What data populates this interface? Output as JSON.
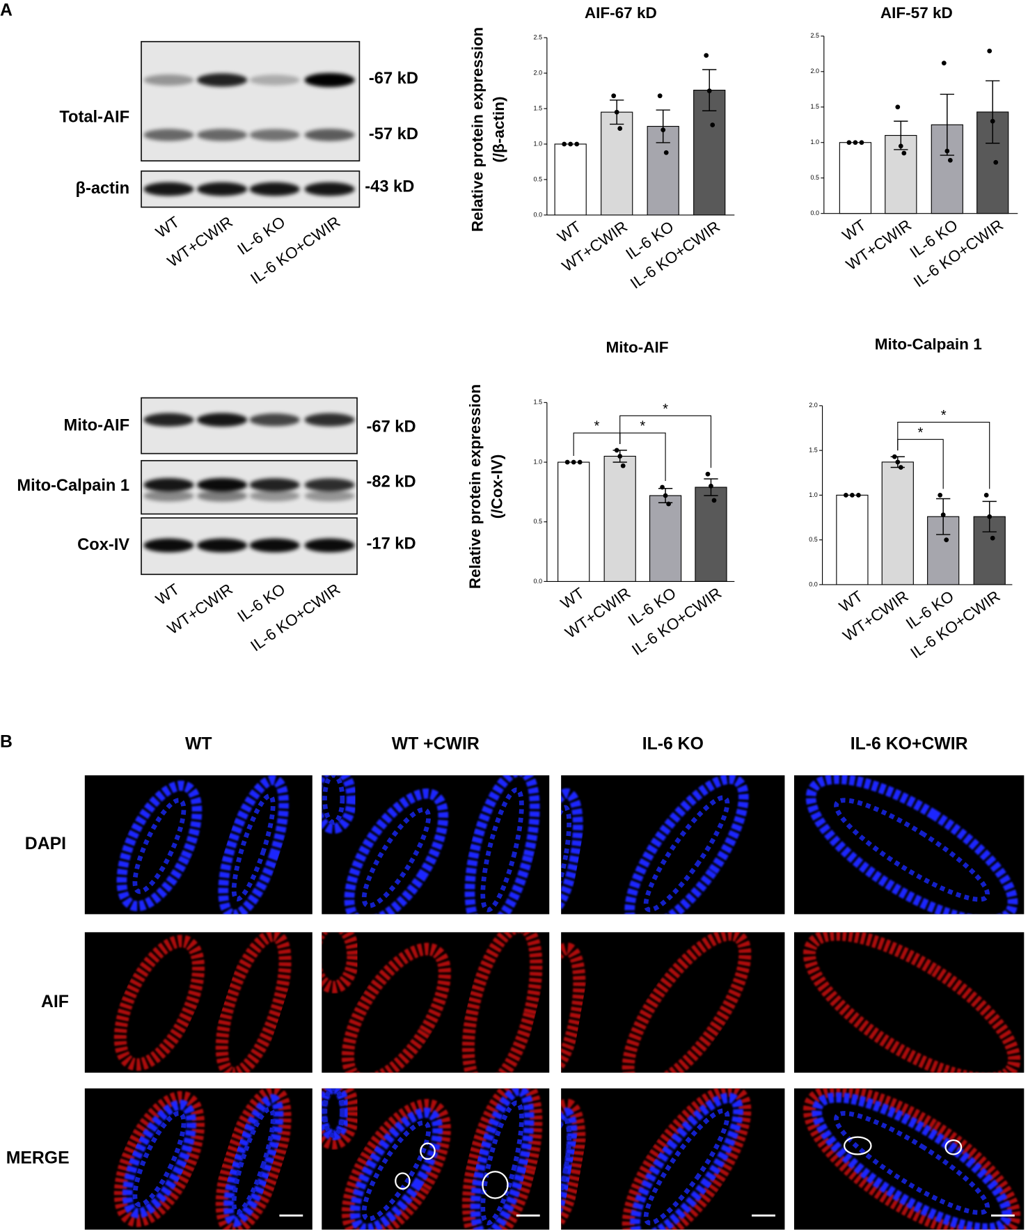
{
  "panel_a": {
    "label": "A",
    "blot_groups": [
      {
        "lanes": [
          "WT",
          "WT+CWIR",
          "IL-6 KO",
          "IL-6 KO+CWIR"
        ],
        "blots": [
          {
            "label": "Total-AIF",
            "markers": [
              "-67 kD",
              "-57 kD"
            ]
          },
          {
            "label": "β-actin",
            "markers": [
              "-43 kD"
            ]
          }
        ]
      },
      {
        "lanes": [
          "WT",
          "WT+CWIR",
          "IL-6 KO",
          "IL-6 KO+CWIR"
        ],
        "blots": [
          {
            "label": "Mito-AIF",
            "markers": [
              "-67 kD"
            ]
          },
          {
            "label": "Mito-Calpain 1",
            "markers": [
              "-82 kD"
            ]
          },
          {
            "label": "Cox-IV",
            "markers": [
              "-17 kD"
            ]
          }
        ]
      }
    ]
  },
  "chart_data": [
    {
      "type": "bar",
      "title": "AIF-67 kD",
      "ylabel": [
        "Relative protein expression",
        "(/β-actin)"
      ],
      "categories": [
        "WT",
        "WT+CWIR",
        "IL-6 KO",
        "IL-6 KO+CWIR"
      ],
      "values": [
        1.0,
        1.45,
        1.25,
        1.76
      ],
      "errors": [
        0,
        0.17,
        0.23,
        0.29
      ],
      "points": [
        [
          1,
          1,
          1
        ],
        [
          1.68,
          1.45,
          1.22
        ],
        [
          1.68,
          1.2,
          0.88
        ],
        [
          2.25,
          1.75,
          1.27
        ]
      ],
      "colors": [
        "#ffffff",
        "#d9d9d9",
        "#a6a6ad",
        "#595959"
      ],
      "ylim": [
        0,
        2.5
      ],
      "yticks": [
        {
          "value": 0,
          "label": "0.0"
        },
        {
          "value": 0.5,
          "label": "0.5"
        },
        {
          "value": 1,
          "label": "1.0"
        },
        {
          "value": 1.5,
          "label": "1.5"
        },
        {
          "value": 2,
          "label": "2.0"
        },
        {
          "value": 2.5,
          "label": "2.5"
        }
      ]
    },
    {
      "type": "bar",
      "title": "AIF-57 kD",
      "categories": [
        "WT",
        "WT+CWIR",
        "IL-6 KO",
        "IL-6 KO+CWIR"
      ],
      "values": [
        1.0,
        1.1,
        1.25,
        1.43
      ],
      "errors": [
        0,
        0.2,
        0.43,
        0.44
      ],
      "points": [
        [
          1,
          1,
          1
        ],
        [
          1.5,
          0.95,
          0.85
        ],
        [
          2.12,
          0.88,
          0.75
        ],
        [
          2.29,
          1.3,
          0.72
        ]
      ],
      "colors": [
        "#ffffff",
        "#d9d9d9",
        "#a6a6ad",
        "#595959"
      ],
      "ylim": [
        0,
        2.5
      ],
      "yticks": [
        {
          "value": 0,
          "label": "0.0"
        },
        {
          "value": 0.5,
          "label": "0.5"
        },
        {
          "value": 1,
          "label": "1.0"
        },
        {
          "value": 1.5,
          "label": "1.5"
        },
        {
          "value": 2,
          "label": "2.0"
        },
        {
          "value": 2.5,
          "label": "2.5"
        }
      ]
    },
    {
      "type": "bar",
      "title": "Mito-AIF",
      "ylabel": [
        "Relative protein expression",
        "(/Cox-IV)"
      ],
      "categories": [
        "WT",
        "WT+CWIR",
        "IL-6 KO",
        "IL-6 KO+CWIR"
      ],
      "values": [
        1.0,
        1.05,
        0.72,
        0.79
      ],
      "errors": [
        0,
        0.05,
        0.06,
        0.07
      ],
      "points": [
        [
          1,
          1,
          1
        ],
        [
          1.1,
          1.05,
          0.97
        ],
        [
          0.79,
          0.72,
          0.65
        ],
        [
          0.9,
          0.8,
          0.68
        ]
      ],
      "colors": [
        "#ffffff",
        "#d9d9d9",
        "#a6a6ad",
        "#595959"
      ],
      "ylim": [
        0,
        1.5
      ],
      "yticks": [
        {
          "value": 0,
          "label": "0.0"
        },
        {
          "value": 0.5,
          "label": "0.5"
        },
        {
          "value": 1,
          "label": "1.0"
        },
        {
          "value": 1.5,
          "label": "1.5"
        }
      ],
      "significance": [
        {
          "from": 0,
          "to": 1,
          "text": "*"
        },
        {
          "from": 1,
          "to": 2,
          "text": "*"
        },
        {
          "from": 1,
          "to": 3,
          "text": "*"
        }
      ]
    },
    {
      "type": "bar",
      "title": "Mito-Calpain 1",
      "categories": [
        "WT",
        "WT+CWIR",
        "IL-6 KO",
        "IL-6 KO+CWIR"
      ],
      "values": [
        1.0,
        1.37,
        0.76,
        0.76
      ],
      "errors": [
        0,
        0.06,
        0.2,
        0.17
      ],
      "points": [
        [
          1,
          1,
          1
        ],
        [
          1.43,
          1.37,
          1.31
        ],
        [
          1.0,
          0.78,
          0.5
        ],
        [
          1.0,
          0.76,
          0.52
        ]
      ],
      "colors": [
        "#ffffff",
        "#d9d9d9",
        "#a6a6ad",
        "#595959"
      ],
      "ylim": [
        0,
        2.0
      ],
      "yticks": [
        {
          "value": 0,
          "label": "0.0"
        },
        {
          "value": 0.5,
          "label": "0.5"
        },
        {
          "value": 1,
          "label": "1.0"
        },
        {
          "value": 1.5,
          "label": "1.5"
        },
        {
          "value": 2,
          "label": "2.0"
        }
      ],
      "significance": [
        {
          "from": 1,
          "to": 2,
          "text": "*"
        },
        {
          "from": 1,
          "to": 3,
          "text": "*"
        }
      ]
    }
  ],
  "panel_b": {
    "label": "B",
    "columns": [
      "WT",
      "WT +CWIR",
      "IL-6 KO",
      "IL-6 KO+CWIR"
    ],
    "rows": [
      "DAPI",
      "AIF",
      "MERGE"
    ]
  }
}
